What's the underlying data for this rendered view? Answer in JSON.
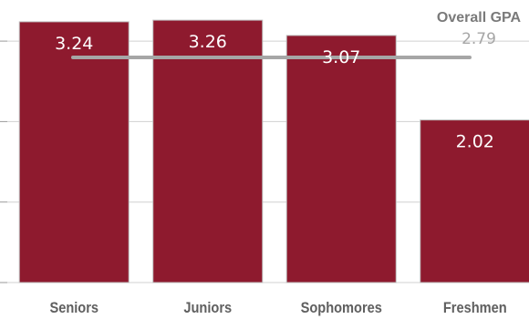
{
  "chart_data": {
    "type": "bar",
    "categories": [
      "Seniors",
      "Juniors",
      "Sophomores",
      "Freshmen"
    ],
    "values": [
      3.24,
      3.26,
      3.07,
      2.02
    ],
    "value_labels": [
      "3.24",
      "3.26",
      "3.07",
      "2.02"
    ],
    "ylim": [
      0,
      3.4
    ],
    "grid": true,
    "bar_color": "#8e1a2e",
    "reference_line": {
      "label": "Overall GPA",
      "value": 2.79,
      "value_label": "2.79",
      "color": "#a6a6a6"
    }
  }
}
